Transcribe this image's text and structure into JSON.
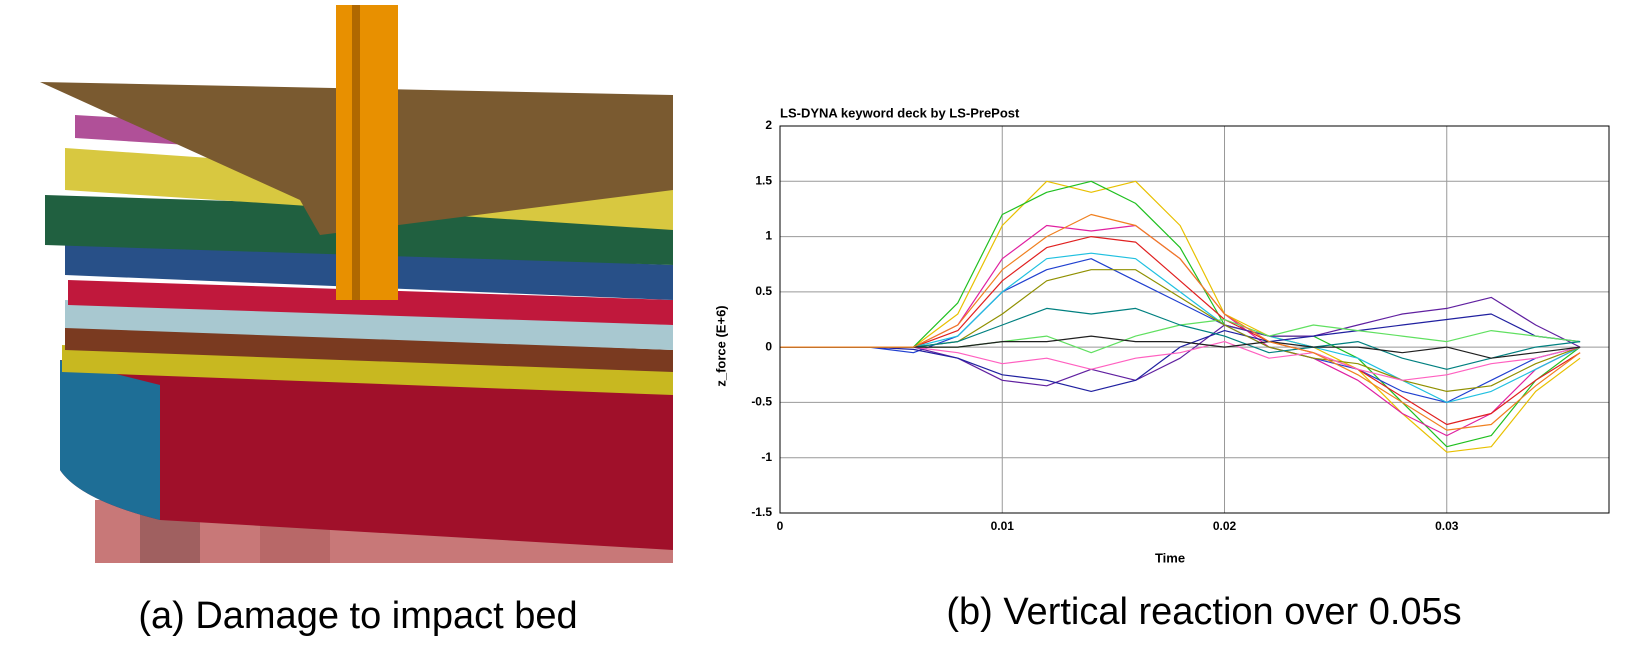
{
  "captions": [
    "(a) Damage to impact bed",
    "(b) Vertical reaction over 0.05s"
  ],
  "chart_data": {
    "type": "line",
    "title": "LS-DYNA keyword deck by LS-PrePost",
    "xlabel": "Time",
    "ylabel": "z_force (E+6)",
    "x": [
      0,
      0.002,
      0.004,
      0.006,
      0.008,
      0.01,
      0.012,
      0.014,
      0.016,
      0.018,
      0.02,
      0.022,
      0.024,
      0.026,
      0.028,
      0.03,
      0.032,
      0.034,
      0.036
    ],
    "xlim": [
      0,
      0.0373
    ],
    "xticks": [
      0,
      0.01,
      0.02,
      0.03
    ],
    "ylim": [
      -1.5,
      2
    ],
    "yticks": [
      -1.5,
      -1,
      -0.5,
      0,
      0.5,
      1,
      1.5,
      2
    ],
    "grid": true,
    "series": [
      {
        "color": "#e8c000",
        "values": [
          0,
          0,
          0,
          0,
          0.3,
          1.1,
          1.5,
          1.4,
          1.5,
          1.1,
          0.3,
          0.1,
          0,
          -0.2,
          -0.6,
          -0.95,
          -0.9,
          -0.4,
          -0.1
        ]
      },
      {
        "color": "#20c020",
        "values": [
          0,
          0,
          0,
          0,
          0.4,
          1.2,
          1.4,
          1.5,
          1.3,
          0.9,
          0.2,
          0.1,
          0.1,
          -0.1,
          -0.5,
          -0.9,
          -0.8,
          -0.3,
          0
        ]
      },
      {
        "color": "#e020a0",
        "values": [
          0,
          0,
          0,
          0,
          0.2,
          0.8,
          1.1,
          1.05,
          1.1,
          0.8,
          0.3,
          0,
          -0.1,
          -0.3,
          -0.6,
          -0.8,
          -0.6,
          -0.2,
          0
        ]
      },
      {
        "color": "#2040d0",
        "values": [
          0,
          0,
          0,
          -0.05,
          0.1,
          0.5,
          0.7,
          0.8,
          0.6,
          0.4,
          0.2,
          0,
          -0.1,
          -0.2,
          -0.4,
          -0.5,
          -0.3,
          -0.1,
          0
        ]
      },
      {
        "color": "#e02020",
        "values": [
          0,
          0,
          0,
          0,
          0.15,
          0.6,
          0.9,
          1.0,
          0.95,
          0.6,
          0.25,
          0.05,
          -0.05,
          -0.2,
          -0.45,
          -0.7,
          -0.6,
          -0.3,
          -0.05
        ]
      },
      {
        "color": "#20c0e0",
        "values": [
          0,
          0,
          0,
          0,
          0.1,
          0.5,
          0.8,
          0.85,
          0.8,
          0.5,
          0.2,
          0.1,
          0,
          -0.1,
          -0.3,
          -0.5,
          -0.4,
          -0.2,
          0
        ]
      },
      {
        "color": "#6020a0",
        "values": [
          0,
          0,
          0,
          0,
          -0.1,
          -0.3,
          -0.35,
          -0.2,
          -0.3,
          -0.1,
          0.2,
          0.1,
          0.1,
          0.2,
          0.3,
          0.35,
          0.45,
          0.2,
          0
        ]
      },
      {
        "color": "#2020a0",
        "values": [
          0,
          0,
          0,
          -0.02,
          -0.1,
          -0.25,
          -0.3,
          -0.4,
          -0.3,
          0,
          0.15,
          0.05,
          0.1,
          0.15,
          0.2,
          0.25,
          0.3,
          0.1,
          0.05
        ]
      },
      {
        "color": "#60e060",
        "values": [
          0,
          0,
          0,
          0,
          0,
          0.05,
          0.1,
          -0.05,
          0.1,
          0.2,
          0.25,
          0.1,
          0.2,
          0.15,
          0.1,
          0.05,
          0.15,
          0.1,
          0.05
        ]
      },
      {
        "color": "#909000",
        "values": [
          0,
          0,
          0,
          0,
          0.05,
          0.3,
          0.6,
          0.7,
          0.7,
          0.45,
          0.2,
          0,
          -0.1,
          -0.15,
          -0.3,
          -0.4,
          -0.35,
          -0.15,
          0
        ]
      },
      {
        "color": "#ff60c0",
        "values": [
          0,
          0,
          0,
          0,
          -0.05,
          -0.15,
          -0.1,
          -0.2,
          -0.1,
          -0.05,
          0.05,
          -0.1,
          -0.05,
          -0.2,
          -0.3,
          -0.25,
          -0.15,
          -0.1,
          0
        ]
      },
      {
        "color": "#008080",
        "values": [
          0,
          0,
          0,
          0,
          0.05,
          0.2,
          0.35,
          0.3,
          0.35,
          0.2,
          0.1,
          -0.05,
          0,
          0.05,
          -0.1,
          -0.2,
          -0.1,
          0,
          0.05
        ]
      },
      {
        "color": "#202020",
        "values": [
          0,
          0,
          0,
          0,
          0,
          0.05,
          0.05,
          0.1,
          0.05,
          0.05,
          0,
          0.05,
          0,
          0,
          -0.05,
          0,
          -0.1,
          -0.05,
          0
        ]
      },
      {
        "color": "#f08020",
        "values": [
          0,
          0,
          0,
          0,
          0.2,
          0.7,
          1.0,
          1.2,
          1.1,
          0.8,
          0.3,
          0.05,
          -0.05,
          -0.25,
          -0.5,
          -0.75,
          -0.7,
          -0.35,
          -0.05
        ]
      }
    ]
  }
}
